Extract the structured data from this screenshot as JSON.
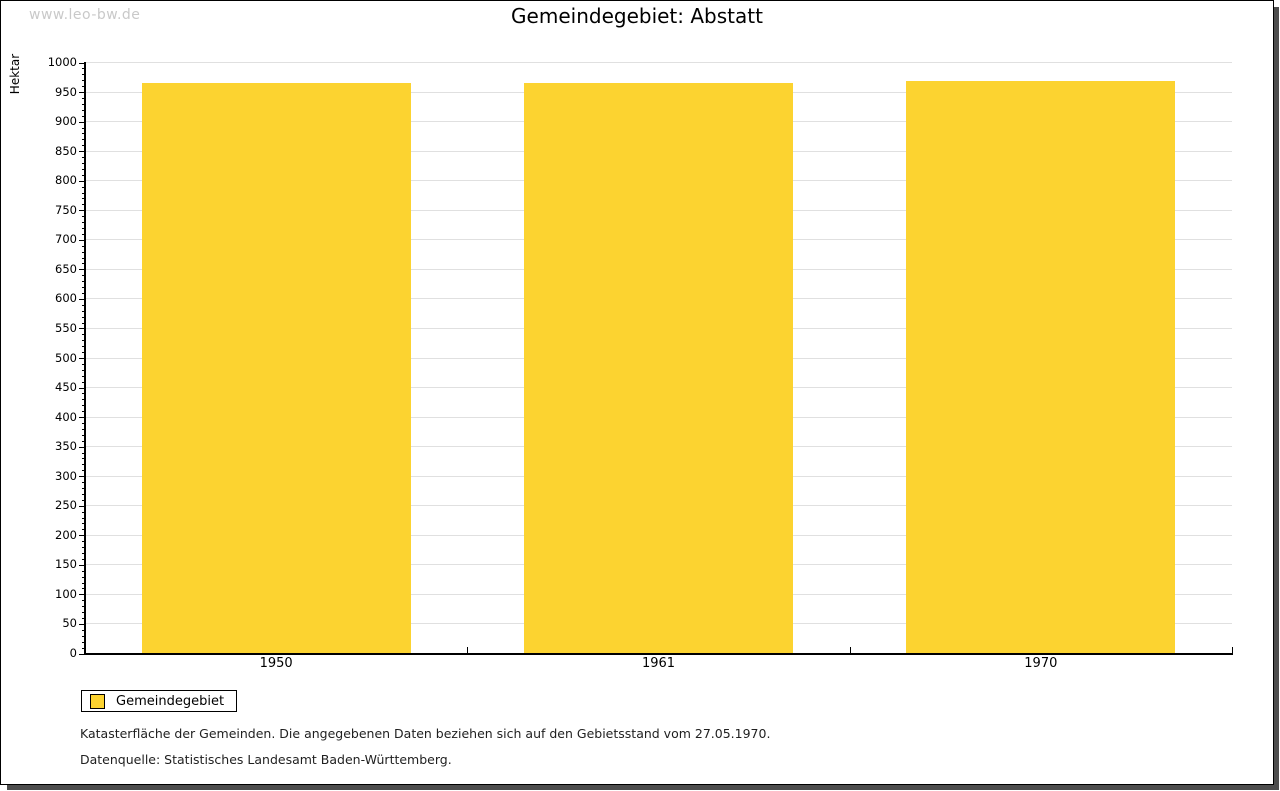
{
  "watermark": "www.leo-bw.de",
  "title": "Gemeindegebiet: Abstatt",
  "chart_data": {
    "type": "bar",
    "title": "Gemeindegebiet: Abstatt",
    "categories": [
      "1950",
      "1961",
      "1970"
    ],
    "series": [
      {
        "name": "Gemeindegebiet",
        "color": "#fcd330",
        "values": [
          966,
          966,
          969
        ]
      }
    ],
    "xlabel": "",
    "ylabel": "Hektar",
    "ylim": [
      0,
      1000
    ],
    "ytick_major": 50,
    "ytick_minor": 10,
    "grid": true,
    "legend_position": "bottom-left"
  },
  "legend": {
    "items": [
      {
        "label": "Gemeindegebiet",
        "color": "#fcd330"
      }
    ]
  },
  "footer": {
    "line1": "Katasterfläche der Gemeinden. Die angegebenen Daten beziehen sich auf den Gebietsstand vom 27.05.1970.",
    "line2": "Datenquelle: Statistisches Landesamt Baden-Württemberg."
  },
  "colors": {
    "bar": "#fcd330",
    "grid": "#e0e0e0",
    "axis": "#000000",
    "watermark": "#c9c9c9",
    "frame_shadow": "#4d4d4d"
  }
}
